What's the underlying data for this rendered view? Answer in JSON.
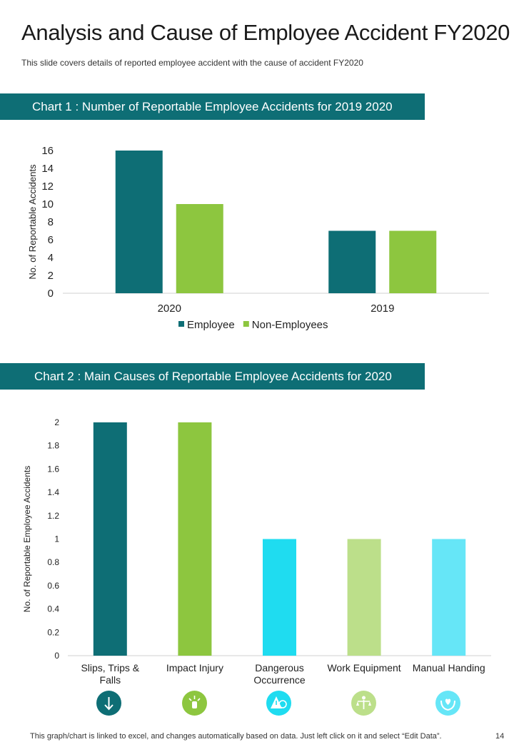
{
  "page": {
    "title": "Analysis and Cause of Employee Accident FY2020",
    "subtitle": "This slide covers details of reported employee accident with the cause of accident FY2020",
    "footer": "This graph/chart is linked to excel, and changes automatically based on data. Just left click on it and select “Edit Data”.",
    "page_number": "14"
  },
  "banners": {
    "chart1": "Chart 1 : Number of Reportable Employee Accidents for 2019 2020",
    "chart2": "Chart 2 : Main Causes of Reportable Employee Accidents for 2020"
  },
  "colors": {
    "teal_dark": "#0e6e75",
    "green": "#8dc63f",
    "cyan": "#1fdcf0",
    "light_green": "#bcdf8a",
    "light_cyan": "#66e6f7"
  },
  "icons": [
    "arrow-down-icon",
    "hand-sparkle-icon",
    "warning-shield-icon",
    "scales-person-icon",
    "hands-care-icon"
  ],
  "chart_data": [
    {
      "type": "bar",
      "title": "Number of Reportable Employee Accidents for 2019 2020",
      "categories": [
        "2020",
        "2019"
      ],
      "series": [
        {
          "name": "Employee",
          "values": [
            16,
            7
          ],
          "color": "#0e6e75"
        },
        {
          "name": "Non-Employees",
          "values": [
            10,
            7
          ],
          "color": "#8dc63f"
        }
      ],
      "xlabel": "",
      "ylabel": "No. of Reportable Accidents",
      "ylim": [
        0,
        16
      ],
      "yticks": [
        0,
        2,
        4,
        6,
        8,
        10,
        12,
        14,
        16
      ],
      "legend": "bottom",
      "grid": false
    },
    {
      "type": "bar",
      "title": "Main Causes of Reportable Employee Accidents for 2020",
      "categories": [
        [
          "Slips, Trips &",
          "Falls"
        ],
        [
          "Impact Injury"
        ],
        [
          "Dangerous",
          "Occurrence"
        ],
        [
          "Work Equipment"
        ],
        [
          "Manual Handing"
        ]
      ],
      "values": [
        2,
        2,
        1,
        1,
        1
      ],
      "colors": [
        "#0e6e75",
        "#8dc63f",
        "#1fdcf0",
        "#bcdf8a",
        "#66e6f7"
      ],
      "xlabel": "",
      "ylabel": "No. of Reportable  Employee Accidents",
      "ylim": [
        0,
        2
      ],
      "yticks": [
        "0",
        "0.2",
        "0.4",
        "0.6",
        "0.8",
        "1",
        "1.2",
        "1.4",
        "1.6",
        "1.8",
        "2"
      ],
      "grid": false
    }
  ]
}
